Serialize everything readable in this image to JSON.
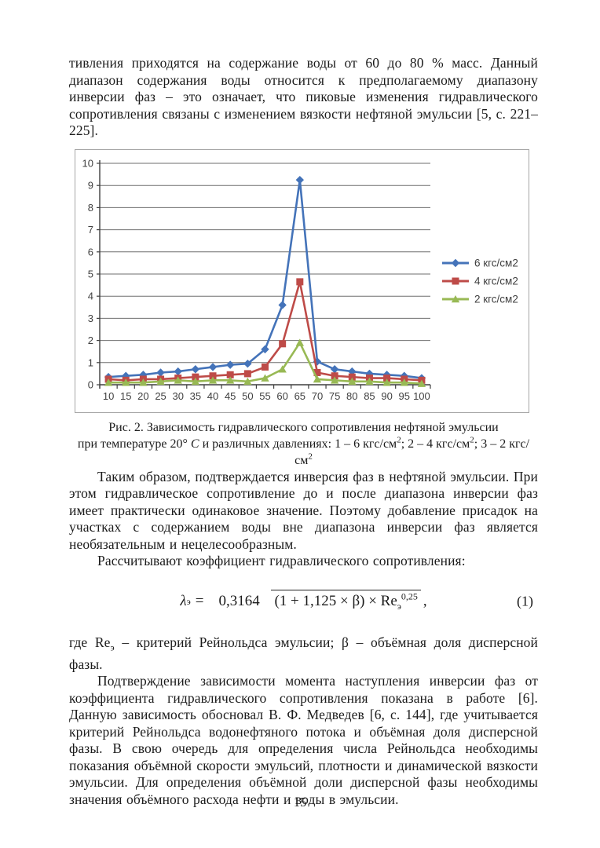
{
  "paragraphs": {
    "p1": "тивления приходятся на содержание воды от 60 до 80 % масс. Данный диапазон содержания воды относится к предполагаемому диапазону инверсии фаз – это означает, что пиковые изменения гидравлического сопротивления связаны с изменением вязкости нефтяной эмульсии [5, с. 221–225].",
    "p2": "Таким образом, подтверждается инверсия фаз в нефтяной эмульсии. При этом гидравлическое сопротивление до и после диапазона инверсии фаз имеет практически одинаковое значение. Поэтому добавление присадок на участках с содержанием воды вне диапазона инверсии фаз является необязательным и нецелесообразным.",
    "p3": "Рассчитывают коэффициент гидравлического сопротивления:",
    "p4_prefix": "где Re",
    "p4_sub": "э",
    "p4_rest": " – критерий Рейнольдса эмульсии; β – объёмная доля дисперсной фазы.",
    "p5": "Подтверждение зависимости момента наступления инверсии фаз от коэффициента гидравлического сопротивления показана в работе [6]. Данную зависимость обосновал В. Ф. Медведев [6, с. 144], где учитывается критерий Рейнольдса водонефтяного потока и объёмная доля дисперсной фазы. В свою очередь для определения числа Рейнольдса необходимы показания объёмной скорости эмульсий, плотности и динамической вязкости эмульсии. Для определения объёмной доли дисперсной фазы необходимы значения объёмного расхода нефти и воды в эмульсии."
  },
  "figure_caption": {
    "line1": "Рис. 2. Зависимость гидравлического сопротивления нефтяной эмульсии",
    "line2_a": "при температуре 20° ",
    "line2_c": "С",
    "line2_b": " и различных давлениях: 1 – 6 кгс/см",
    "sup1": "2",
    "line2_d": "; 2 – 4 кгс/см",
    "sup2": "2",
    "line2_e": "; 3 – 2 кгс/см",
    "sup3": "2"
  },
  "formula": {
    "lhs": "λ",
    "lhs_sub": "э",
    "equals": "=",
    "numerator": "0,3164",
    "den_main": "(1 + 1,125 × β) × Re",
    "den_sub": "э",
    "den_sup": "0,25",
    "comma": ",",
    "number": "(1)"
  },
  "page_number": "15",
  "chart_data": {
    "type": "line",
    "title": "",
    "xlabel": "",
    "ylabel": "",
    "x": [
      10,
      15,
      20,
      25,
      30,
      35,
      40,
      45,
      50,
      55,
      60,
      65,
      70,
      75,
      80,
      85,
      90,
      95,
      100
    ],
    "ylim": [
      0,
      10
    ],
    "ytick_step": 1,
    "grid": true,
    "legend_position": "right",
    "colors": {
      "axis": "#3f3f3f",
      "gridline": "#6e6e6e",
      "border": "#a6a6a6",
      "tick_text": "#3f3f3f"
    },
    "series": [
      {
        "name": "6 кгс/см2",
        "color": "#4473B9",
        "marker": "diamond",
        "values": [
          0.35,
          0.4,
          0.45,
          0.55,
          0.6,
          0.7,
          0.8,
          0.9,
          0.95,
          1.6,
          3.6,
          9.25,
          1.05,
          0.7,
          0.6,
          0.5,
          0.45,
          0.4,
          0.3
        ]
      },
      {
        "name": "4 кгс/см2",
        "color": "#BE4B48",
        "marker": "square",
        "values": [
          0.25,
          0.2,
          0.25,
          0.25,
          0.3,
          0.35,
          0.4,
          0.45,
          0.5,
          0.8,
          1.85,
          4.65,
          0.55,
          0.4,
          0.35,
          0.3,
          0.3,
          0.25,
          0.2
        ]
      },
      {
        "name": "2 кгс/см2",
        "color": "#98B954",
        "marker": "triangle",
        "values": [
          0.1,
          0.1,
          0.1,
          0.15,
          0.2,
          0.15,
          0.2,
          0.2,
          0.15,
          0.3,
          0.7,
          1.9,
          0.25,
          0.2,
          0.15,
          0.15,
          0.1,
          0.1,
          0.05
        ]
      }
    ]
  }
}
